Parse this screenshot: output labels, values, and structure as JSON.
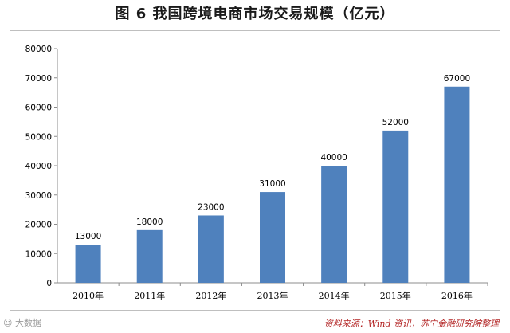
{
  "title": "图 6  我国跨境电商市场交易规模（亿元）",
  "source_note": "资料来源：Wind 资讯，苏宁金融研究院整理",
  "watermark": "☺ 大数据",
  "colors": {
    "bar": "#4f81bd",
    "axis": "#8c8c8c",
    "text": "#000000"
  },
  "chart_data": {
    "type": "bar",
    "title": "图 6  我国跨境电商市场交易规模（亿元）",
    "categories": [
      "2010年",
      "2011年",
      "2012年",
      "2013年",
      "2014年",
      "2015年",
      "2016年"
    ],
    "values": [
      13000,
      18000,
      23000,
      31000,
      40000,
      52000,
      67000
    ],
    "data_labels": [
      "13000",
      "18000",
      "23000",
      "31000",
      "40000",
      "52000",
      "67000"
    ],
    "ylim": [
      0,
      80000
    ],
    "yticks": [
      0,
      10000,
      20000,
      30000,
      40000,
      50000,
      60000,
      70000,
      80000
    ],
    "xlabel": "",
    "ylabel": "",
    "grid": false,
    "legend": "none"
  }
}
